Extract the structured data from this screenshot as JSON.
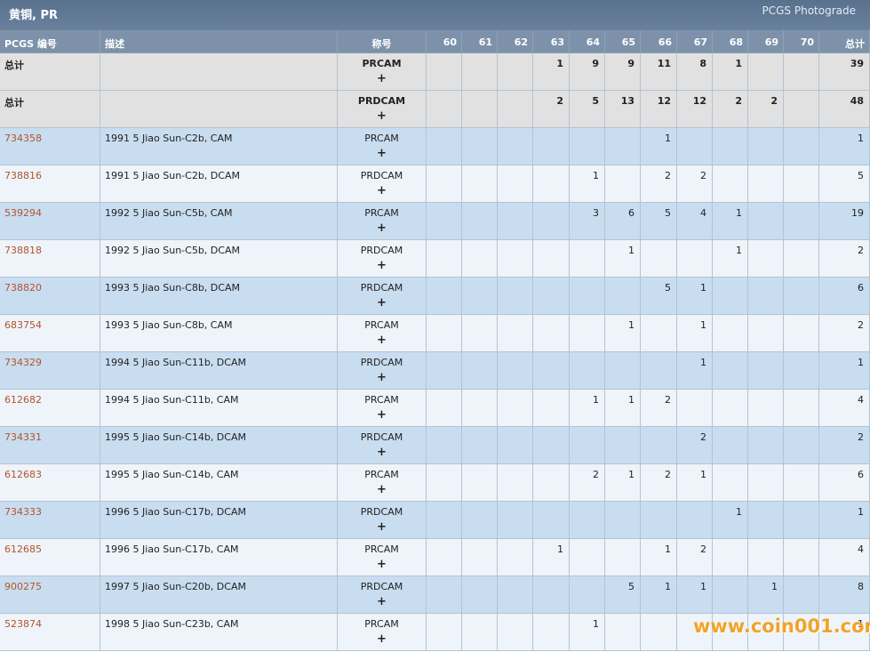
{
  "header": {
    "title": "黄铜, PR",
    "link": "PCGS Photograde"
  },
  "columns": [
    "PCGS 编号",
    "描述",
    "称号",
    "60",
    "61",
    "62",
    "63",
    "64",
    "65",
    "66",
    "67",
    "68",
    "69",
    "70",
    "总计"
  ],
  "totals": [
    {
      "label": "总计",
      "designation": "PRCAM",
      "plus": "+",
      "grades": [
        null,
        null,
        null,
        1,
        9,
        9,
        11,
        8,
        1,
        null,
        null
      ],
      "total": 39
    },
    {
      "label": "总计",
      "designation": "PRDCAM",
      "plus": "+",
      "grades": [
        null,
        null,
        null,
        2,
        5,
        13,
        12,
        12,
        2,
        2,
        null
      ],
      "total": 48
    }
  ],
  "rows": [
    {
      "id": "734358",
      "description": "1991 5 Jiao Sun-C2b, CAM",
      "designation": "PRCAM",
      "plus": "+",
      "grades": [
        null,
        null,
        null,
        null,
        null,
        null,
        1,
        null,
        null,
        null,
        null
      ],
      "total": 1
    },
    {
      "id": "738816",
      "description": "1991 5 Jiao Sun-C2b, DCAM",
      "designation": "PRDCAM",
      "plus": "+",
      "grades": [
        null,
        null,
        null,
        null,
        1,
        null,
        2,
        2,
        null,
        null,
        null
      ],
      "total": 5
    },
    {
      "id": "539294",
      "description": "1992 5 Jiao Sun-C5b, CAM",
      "designation": "PRCAM",
      "plus": "+",
      "grades": [
        null,
        null,
        null,
        null,
        3,
        6,
        5,
        4,
        1,
        null,
        null
      ],
      "total": 19
    },
    {
      "id": "738818",
      "description": "1992 5 Jiao Sun-C5b, DCAM",
      "designation": "PRDCAM",
      "plus": "+",
      "grades": [
        null,
        null,
        null,
        null,
        null,
        1,
        null,
        null,
        1,
        null,
        null
      ],
      "total": 2
    },
    {
      "id": "738820",
      "description": "1993 5 Jiao Sun-C8b, DCAM",
      "designation": "PRDCAM",
      "plus": "+",
      "grades": [
        null,
        null,
        null,
        null,
        null,
        null,
        5,
        1,
        null,
        null,
        null
      ],
      "total": 6
    },
    {
      "id": "683754",
      "description": "1993 5 Jiao Sun-C8b, CAM",
      "designation": "PRCAM",
      "plus": "+",
      "grades": [
        null,
        null,
        null,
        null,
        null,
        1,
        null,
        1,
        null,
        null,
        null
      ],
      "total": 2
    },
    {
      "id": "734329",
      "description": "1994 5 Jiao Sun-C11b, DCAM",
      "designation": "PRDCAM",
      "plus": "+",
      "grades": [
        null,
        null,
        null,
        null,
        null,
        null,
        null,
        1,
        null,
        null,
        null
      ],
      "total": 1
    },
    {
      "id": "612682",
      "description": "1994 5 Jiao Sun-C11b, CAM",
      "designation": "PRCAM",
      "plus": "+",
      "grades": [
        null,
        null,
        null,
        null,
        1,
        1,
        2,
        null,
        null,
        null,
        null
      ],
      "total": 4
    },
    {
      "id": "734331",
      "description": "1995 5 Jiao Sun-C14b, DCAM",
      "designation": "PRDCAM",
      "plus": "+",
      "grades": [
        null,
        null,
        null,
        null,
        null,
        null,
        null,
        2,
        null,
        null,
        null
      ],
      "total": 2
    },
    {
      "id": "612683",
      "description": "1995 5 Jiao Sun-C14b, CAM",
      "designation": "PRCAM",
      "plus": "+",
      "grades": [
        null,
        null,
        null,
        null,
        2,
        1,
        2,
        1,
        null,
        null,
        null
      ],
      "total": 6
    },
    {
      "id": "734333",
      "description": "1996 5 Jiao Sun-C17b, DCAM",
      "designation": "PRDCAM",
      "plus": "+",
      "grades": [
        null,
        null,
        null,
        null,
        null,
        null,
        null,
        null,
        1,
        null,
        null
      ],
      "total": 1
    },
    {
      "id": "612685",
      "description": "1996 5 Jiao Sun-C17b, CAM",
      "designation": "PRCAM",
      "plus": "+",
      "grades": [
        null,
        null,
        null,
        1,
        null,
        null,
        1,
        2,
        null,
        null,
        null
      ],
      "total": 4
    },
    {
      "id": "900275",
      "description": "1997 5 Jiao Sun-C20b, DCAM",
      "designation": "PRDCAM",
      "plus": "+",
      "grades": [
        null,
        null,
        null,
        null,
        null,
        5,
        1,
        1,
        null,
        1,
        null
      ],
      "total": 8
    },
    {
      "id": "523874",
      "description": "1998 5 Jiao Sun-C23b, CAM",
      "designation": "PRCAM",
      "plus": "+",
      "grades": [
        null,
        null,
        null,
        null,
        1,
        null,
        null,
        null,
        null,
        null,
        null
      ],
      "total": 1
    }
  ],
  "watermark": "www.coin001.com"
}
